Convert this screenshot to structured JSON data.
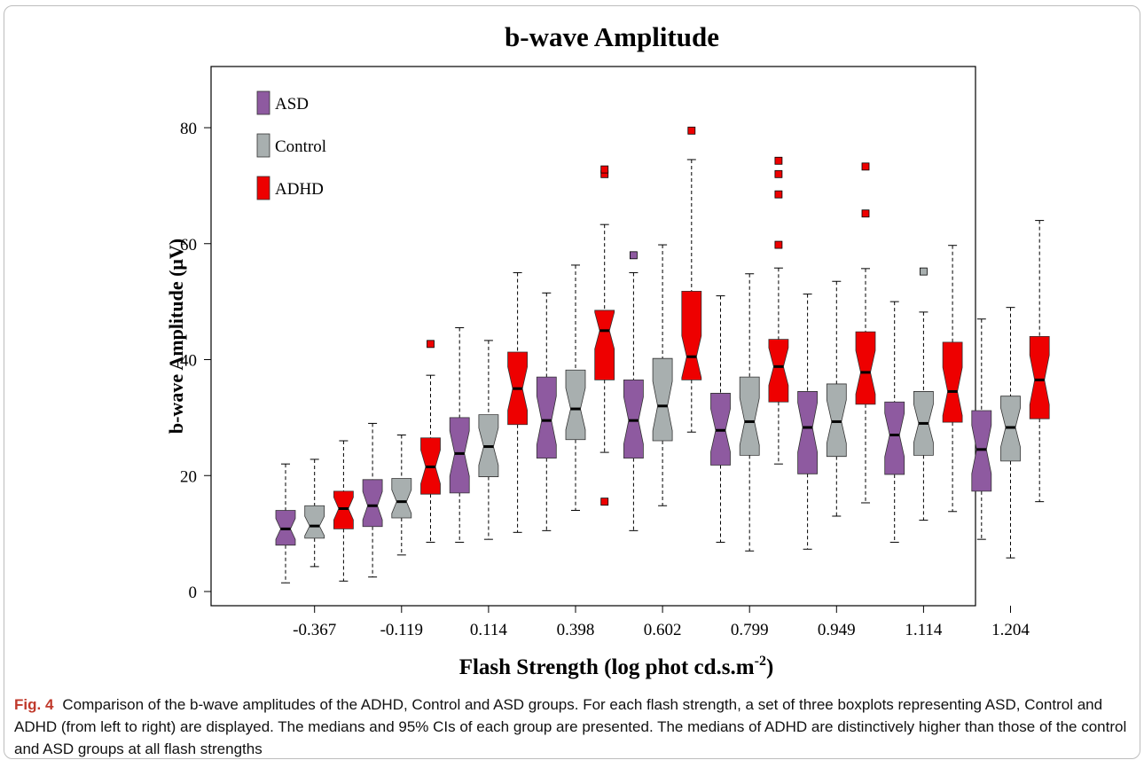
{
  "chart_data": {
    "type": "boxplot",
    "title": "b-wave Amplitude",
    "xlabel": "Flash Strength (log phot cd.s.m",
    "xlabel_sup": "-2",
    "xlabel_end": ")",
    "ylabel": "b-wave Amplitude (μV)",
    "ylim": [
      0,
      90
    ],
    "yticks": [
      0,
      20,
      40,
      60,
      80
    ],
    "categories": [
      "-0.367",
      "-0.119",
      "0.114",
      "0.398",
      "0.602",
      "0.799",
      "0.949",
      "1.114",
      "1.204"
    ],
    "legend_position": "top-left",
    "notched": true,
    "series": [
      {
        "name": "ASD",
        "color": "#8e5aa0",
        "boxes": [
          {
            "min": 1.5,
            "q1": 8,
            "median": 10.8,
            "q3": 14,
            "max": 22,
            "outliers": []
          },
          {
            "min": 2.5,
            "q1": 11.2,
            "median": 14.8,
            "q3": 19.3,
            "max": 29,
            "outliers": []
          },
          {
            "min": 8.5,
            "q1": 17,
            "median": 23.8,
            "q3": 30,
            "max": 45.5,
            "outliers": []
          },
          {
            "min": 10.5,
            "q1": 23,
            "median": 29.5,
            "q3": 37,
            "max": 51.5,
            "outliers": []
          },
          {
            "min": 10.5,
            "q1": 23,
            "median": 29.5,
            "q3": 36.5,
            "max": 55,
            "outliers": [
              58
            ]
          },
          {
            "min": 8.5,
            "q1": 21.8,
            "median": 27.8,
            "q3": 34.2,
            "max": 51,
            "outliers": []
          },
          {
            "min": 7.3,
            "q1": 20.3,
            "median": 28.3,
            "q3": 34.5,
            "max": 51.3,
            "outliers": []
          },
          {
            "min": 8.5,
            "q1": 20.2,
            "median": 27,
            "q3": 32.7,
            "max": 50,
            "outliers": []
          },
          {
            "min": 9,
            "q1": 17.3,
            "median": 24.5,
            "q3": 31.2,
            "max": 47,
            "outliers": []
          }
        ]
      },
      {
        "name": "Control",
        "color": "#a8afaf",
        "boxes": [
          {
            "min": 4.3,
            "q1": 9.2,
            "median": 11.3,
            "q3": 14.8,
            "max": 22.8,
            "outliers": []
          },
          {
            "min": 6.3,
            "q1": 12.7,
            "median": 15.5,
            "q3": 19.5,
            "max": 27,
            "outliers": []
          },
          {
            "min": 9,
            "q1": 19.8,
            "median": 25,
            "q3": 30.5,
            "max": 43.3,
            "outliers": []
          },
          {
            "min": 14,
            "q1": 26.2,
            "median": 31.5,
            "q3": 38.2,
            "max": 56.3,
            "outliers": []
          },
          {
            "min": 14.8,
            "q1": 26,
            "median": 32,
            "q3": 40.2,
            "max": 59.8,
            "outliers": []
          },
          {
            "min": 7,
            "q1": 23.5,
            "median": 29.3,
            "q3": 37,
            "max": 54.8,
            "outliers": []
          },
          {
            "min": 13,
            "q1": 23.3,
            "median": 29.3,
            "q3": 35.8,
            "max": 53.5,
            "outliers": []
          },
          {
            "min": 12.3,
            "q1": 23.5,
            "median": 29,
            "q3": 34.5,
            "max": 48.2,
            "outliers": [
              55.2
            ]
          },
          {
            "min": 5.8,
            "q1": 22.5,
            "median": 28.3,
            "q3": 33.7,
            "max": 49,
            "outliers": []
          }
        ]
      },
      {
        "name": "ADHD",
        "color": "#ee0000",
        "boxes": [
          {
            "min": 1.8,
            "q1": 10.8,
            "median": 14.3,
            "q3": 17.3,
            "max": 26,
            "outliers": []
          },
          {
            "min": 8.5,
            "q1": 16.8,
            "median": 21.5,
            "q3": 26.5,
            "max": 37.3,
            "outliers": [
              42.7
            ]
          },
          {
            "min": 10.2,
            "q1": 28.8,
            "median": 35,
            "q3": 41.3,
            "max": 55,
            "outliers": []
          },
          {
            "min": 24,
            "q1": 36.5,
            "median": 45,
            "q3": 48.5,
            "max": 63.3,
            "outliers": [
              15.5,
              72,
              72.8
            ]
          },
          {
            "min": 27.5,
            "q1": 36.5,
            "median": 40.5,
            "q3": 51.8,
            "max": 74.5,
            "outliers": [
              79.5
            ]
          },
          {
            "min": 22,
            "q1": 32.7,
            "median": 38.8,
            "q3": 43.5,
            "max": 55.8,
            "outliers": [
              59.8,
              68.5,
              72,
              74.3
            ]
          },
          {
            "min": 15.3,
            "q1": 32.3,
            "median": 37.8,
            "q3": 44.8,
            "max": 55.7,
            "outliers": [
              65.2,
              73.3
            ]
          },
          {
            "min": 13.8,
            "q1": 29.2,
            "median": 34.5,
            "q3": 43,
            "max": 59.7,
            "outliers": []
          },
          {
            "min": 15.5,
            "q1": 29.8,
            "median": 36.5,
            "q3": 44,
            "max": 64,
            "outliers": []
          }
        ]
      }
    ]
  },
  "caption": {
    "label": "Fig. 4",
    "text": "Comparison of the b-wave amplitudes of the ADHD, Control and ASD groups. For each flash strength, a set of three boxplots representing ASD, Control and ADHD (from left to right) are displayed. The medians and 95% CIs of each group are presented. The medians of ADHD are distinctively higher than those of the control and ASD groups at all flash strengths"
  }
}
